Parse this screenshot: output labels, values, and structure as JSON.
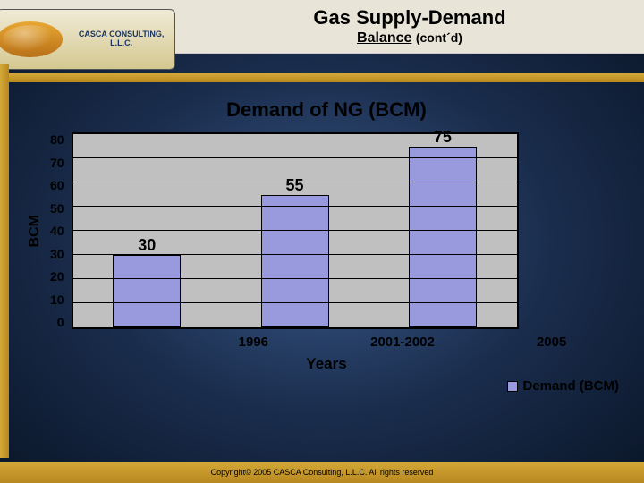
{
  "logo": {
    "name": "CASCA CONSULTING, L.L.C."
  },
  "header": {
    "title_line1": "Gas Supply-Demand",
    "title_line2": "Balance",
    "title_suffix": "(cont´d)"
  },
  "chart": {
    "type": "bar",
    "title": "Demand of NG (BCM)",
    "ylabel": "BCM",
    "xlabel": "Years",
    "ylim": [
      0,
      80
    ],
    "ytick_step": 10,
    "yticks": [
      "80",
      "70",
      "60",
      "50",
      "40",
      "30",
      "20",
      "10",
      "0"
    ],
    "categories": [
      "1996",
      "2001-2002",
      "2005"
    ],
    "values": [
      30,
      55,
      75
    ],
    "value_labels": [
      "30",
      "55",
      "75"
    ],
    "bar_color": "#9999dd",
    "plot_bg": "#c0c0c0",
    "grid_color": "#000000",
    "tick_fontsize": 14,
    "title_fontsize": 22,
    "label_fontsize": 17,
    "legend": {
      "label": "Demand (BCM)",
      "swatch": "#9999dd"
    }
  },
  "footer": {
    "copyright": "Copyright© 2005 CASCA Consulting, L.L.C. All rights reserved"
  },
  "colors": {
    "slide_bg_outer": "#0a1628",
    "slide_bg_inner": "#3a5a8a",
    "gold_light": "#d4a838",
    "gold_dark": "#b88820",
    "cream": "#e8e4d8"
  }
}
